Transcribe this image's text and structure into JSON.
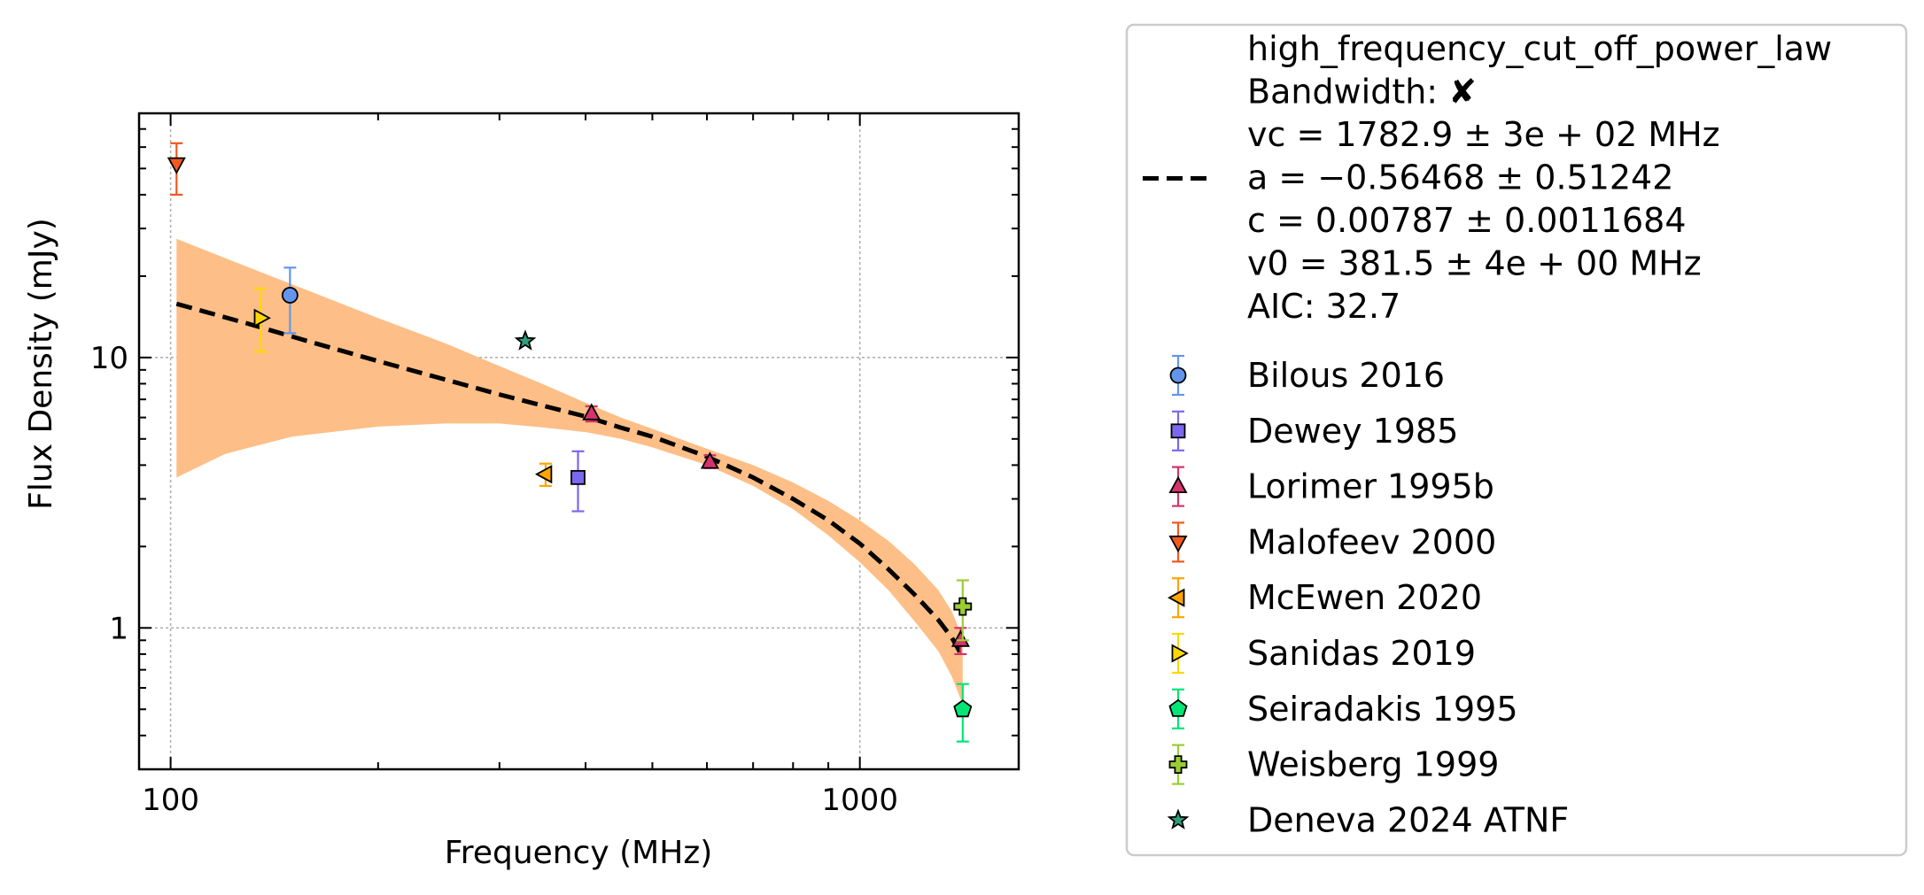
{
  "chart_data": {
    "type": "scatter",
    "x_scale": "log",
    "y_scale": "log",
    "xlabel": "Frequency (MHz)",
    "ylabel": "Flux Density (mJy)",
    "xlim": [
      90,
      1700
    ],
    "ylim": [
      0.3,
      80
    ],
    "x_ticks": [
      {
        "value": 100,
        "label": "100"
      },
      {
        "value": 1000,
        "label": "1000"
      }
    ],
    "y_ticks": [
      {
        "value": 1,
        "label": "1"
      },
      {
        "value": 10,
        "label": "10"
      }
    ],
    "grid": true,
    "legend_position": "outside-right",
    "fit": {
      "name": "high_frequency_cut_off_power_law",
      "bandwidth_label": "Bandwidth: ✘",
      "params": [
        "vc = 1782.9 ± 3e + 02 MHz",
        "a = −0.56468 ± 0.51242",
        "c = 0.00787 ± 0.0011684",
        "v0 = 381.5 ± 4e + 00 MHz",
        "AIC: 32.7"
      ],
      "color": "#000000",
      "band_color": "#fdbf87",
      "curve": [
        {
          "x": 102,
          "y": 15.8
        },
        {
          "x": 130,
          "y": 13.3
        },
        {
          "x": 160,
          "y": 11.4
        },
        {
          "x": 200,
          "y": 9.7
        },
        {
          "x": 250,
          "y": 8.3
        },
        {
          "x": 300,
          "y": 7.3
        },
        {
          "x": 350,
          "y": 6.6
        },
        {
          "x": 400,
          "y": 6.05
        },
        {
          "x": 450,
          "y": 5.5
        },
        {
          "x": 500,
          "y": 5.1
        },
        {
          "x": 600,
          "y": 4.3
        },
        {
          "x": 700,
          "y": 3.6
        },
        {
          "x": 800,
          "y": 3.0
        },
        {
          "x": 900,
          "y": 2.5
        },
        {
          "x": 1000,
          "y": 2.05
        },
        {
          "x": 1100,
          "y": 1.65
        },
        {
          "x": 1200,
          "y": 1.33
        },
        {
          "x": 1300,
          "y": 1.07
        },
        {
          "x": 1360,
          "y": 0.92
        },
        {
          "x": 1410,
          "y": 0.78
        }
      ],
      "band_upper": [
        {
          "x": 102,
          "y": 27.5
        },
        {
          "x": 130,
          "y": 21.5
        },
        {
          "x": 160,
          "y": 17.5
        },
        {
          "x": 200,
          "y": 14.0
        },
        {
          "x": 250,
          "y": 11.3
        },
        {
          "x": 300,
          "y": 9.3
        },
        {
          "x": 350,
          "y": 7.9
        },
        {
          "x": 400,
          "y": 6.8
        },
        {
          "x": 450,
          "y": 6.0
        },
        {
          "x": 500,
          "y": 5.45
        },
        {
          "x": 600,
          "y": 4.6
        },
        {
          "x": 700,
          "y": 4.0
        },
        {
          "x": 800,
          "y": 3.45
        },
        {
          "x": 900,
          "y": 2.95
        },
        {
          "x": 1000,
          "y": 2.5
        },
        {
          "x": 1100,
          "y": 2.1
        },
        {
          "x": 1200,
          "y": 1.72
        },
        {
          "x": 1300,
          "y": 1.38
        },
        {
          "x": 1360,
          "y": 1.15
        },
        {
          "x": 1410,
          "y": 0.92
        }
      ],
      "band_lower": [
        {
          "x": 102,
          "y": 3.6
        },
        {
          "x": 120,
          "y": 4.4
        },
        {
          "x": 150,
          "y": 5.1
        },
        {
          "x": 200,
          "y": 5.55
        },
        {
          "x": 250,
          "y": 5.7
        },
        {
          "x": 300,
          "y": 5.7
        },
        {
          "x": 350,
          "y": 5.5
        },
        {
          "x": 400,
          "y": 5.3
        },
        {
          "x": 450,
          "y": 5.0
        },
        {
          "x": 500,
          "y": 4.65
        },
        {
          "x": 600,
          "y": 4.0
        },
        {
          "x": 700,
          "y": 3.35
        },
        {
          "x": 800,
          "y": 2.75
        },
        {
          "x": 900,
          "y": 2.2
        },
        {
          "x": 1000,
          "y": 1.75
        },
        {
          "x": 1100,
          "y": 1.38
        },
        {
          "x": 1200,
          "y": 1.06
        },
        {
          "x": 1300,
          "y": 0.82
        },
        {
          "x": 1360,
          "y": 0.66
        },
        {
          "x": 1410,
          "y": 0.52
        }
      ]
    },
    "series": [
      {
        "name": "Bilous 2016",
        "marker": "circle",
        "color": "#6495ed",
        "points": [
          {
            "x": 149,
            "y": 17.0,
            "yerr_low": 12.3,
            "yerr_high": 21.5
          }
        ]
      },
      {
        "name": "Dewey 1985",
        "marker": "square",
        "color": "#7b68ee",
        "points": [
          {
            "x": 390,
            "y": 3.6,
            "yerr_low": 2.7,
            "yerr_high": 4.5
          }
        ]
      },
      {
        "name": "Lorimer 1995b",
        "marker": "triangle-up",
        "color": "#d6336c",
        "points": [
          {
            "x": 408,
            "y": 6.2,
            "yerr_low": 5.8,
            "yerr_high": 6.6
          },
          {
            "x": 606,
            "y": 4.1,
            "yerr_low": 3.9,
            "yerr_high": 4.35
          },
          {
            "x": 1400,
            "y": 0.9,
            "yerr_low": 0.8,
            "yerr_high": 1.0
          }
        ]
      },
      {
        "name": "Malofeev 2000",
        "marker": "triangle-down",
        "color": "#f05a1e",
        "points": [
          {
            "x": 102,
            "y": 52.0,
            "yerr_low": 40.0,
            "yerr_high": 62.0
          }
        ]
      },
      {
        "name": "McEwen 2020",
        "marker": "triangle-left",
        "color": "#ffa500",
        "points": [
          {
            "x": 350,
            "y": 3.7,
            "yerr_low": 3.35,
            "yerr_high": 4.05
          }
        ]
      },
      {
        "name": "Sanidas 2019",
        "marker": "triangle-right",
        "color": "#ffd700",
        "points": [
          {
            "x": 135,
            "y": 14.0,
            "yerr_low": 10.5,
            "yerr_high": 18.0
          }
        ]
      },
      {
        "name": "Seiradakis 1995",
        "marker": "pentagon",
        "color": "#00e676",
        "points": [
          {
            "x": 1410,
            "y": 0.5,
            "yerr_low": 0.38,
            "yerr_high": 0.62
          }
        ]
      },
      {
        "name": "Weisberg 1999",
        "marker": "plus",
        "color": "#9acd32",
        "points": [
          {
            "x": 1410,
            "y": 1.2,
            "yerr_low": 0.9,
            "yerr_high": 1.5
          }
        ]
      },
      {
        "name": "Deneva 2024 ATNF",
        "marker": "star",
        "color": "#2e9e7e",
        "points": [
          {
            "x": 327,
            "y": 11.5
          }
        ]
      }
    ]
  }
}
